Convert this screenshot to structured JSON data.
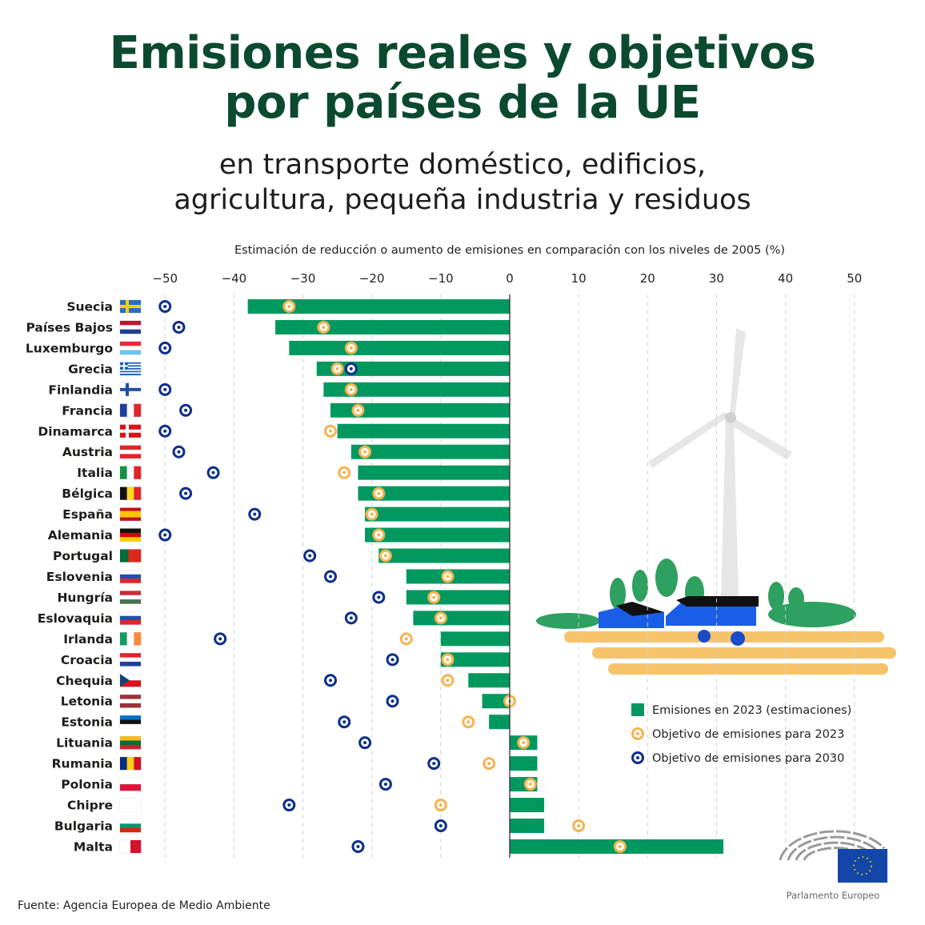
{
  "title_line1": "Emisiones reales y objetivos",
  "title_line2": "por países de la UE",
  "subtitle_line1": "en transporte doméstico, edificios,",
  "subtitle_line2": "agricultura, pequeña industria y residuos",
  "source": "Fuente: Agencia Europea de Medio Ambiente",
  "logo_text": "Parlamento Europeo",
  "colors": {
    "bar": "#00985f",
    "target2023": "#f7b34f",
    "target2030": "#0d2f8a",
    "title": "#0b4a2f"
  },
  "chart_data": {
    "type": "bar",
    "orientation": "horizontal",
    "xlabel": "Estimación de reducción o aumento de emisiones en comparación con los niveles de 2005 (%)",
    "xlim": [
      -50,
      50
    ],
    "xticks": [
      -50,
      -40,
      -30,
      -20,
      -10,
      0,
      10,
      20,
      30,
      40,
      50
    ],
    "xtick_labels": [
      "−50",
      "−40",
      "−30",
      "−20",
      "−10",
      "0",
      "10",
      "20",
      "30",
      "40",
      "50"
    ],
    "grid": true,
    "legend_placement": "right",
    "categories": [
      "Suecia",
      "Países Bajos",
      "Luxemburgo",
      "Grecia",
      "Finlandia",
      "Francia",
      "Dinamarca",
      "Austria",
      "Italia",
      "Bélgica",
      "España",
      "Alemania",
      "Portugal",
      "Eslovenia",
      "Hungría",
      "Eslovaquia",
      "Irlanda",
      "Croacia",
      "Chequia",
      "Letonia",
      "Estonia",
      "Lituania",
      "Rumania",
      "Polonia",
      "Chipre",
      "Bulgaria",
      "Malta"
    ],
    "series": [
      {
        "name": "Emisiones en 2023 (estimaciones)",
        "kind": "bar",
        "values": [
          -38,
          -34,
          -32,
          -28,
          -27,
          -26,
          -25,
          -23,
          -22,
          -22,
          -21,
          -21,
          -19,
          -15,
          -15,
          -14,
          -10,
          -10,
          -6,
          -4,
          -3,
          4,
          4,
          4,
          5,
          5,
          31
        ]
      },
      {
        "name": "Objetivo de emisiones para 2023",
        "kind": "marker",
        "values": [
          -32,
          -27,
          -23,
          -25,
          -23,
          -22,
          -26,
          -21,
          -24,
          -19,
          -20,
          -19,
          -18,
          -9,
          -11,
          -10,
          -15,
          -9,
          -9,
          0,
          -6,
          2,
          -3,
          3,
          -10,
          10,
          16
        ]
      },
      {
        "name": "Objetivo de emisiones para 2030",
        "kind": "marker",
        "values": [
          -50,
          -48,
          -50,
          -23,
          -50,
          -47,
          -50,
          -48,
          -43,
          -47,
          -37,
          -50,
          -29,
          -26,
          -19,
          -23,
          -42,
          -17,
          -26,
          -17,
          -24,
          -21,
          -11,
          -18,
          -32,
          -10,
          -22
        ]
      }
    ],
    "flags": [
      {
        "type": "cross",
        "colors": [
          "#2a6ebb",
          "#f9d000"
        ]
      },
      {
        "type": "h",
        "colors": [
          "#c8102e",
          "#ffffff",
          "#1f3f8f"
        ]
      },
      {
        "type": "h",
        "colors": [
          "#ed2939",
          "#ffffff",
          "#6cc3ef"
        ]
      },
      {
        "type": "greece",
        "colors": [
          "#1f5fb8",
          "#ffffff"
        ]
      },
      {
        "type": "cross",
        "colors": [
          "#ffffff",
          "#1f4fa0"
        ]
      },
      {
        "type": "v",
        "colors": [
          "#1f3f9f",
          "#ffffff",
          "#e1242c"
        ]
      },
      {
        "type": "cross",
        "colors": [
          "#d7141a",
          "#ffffff"
        ]
      },
      {
        "type": "h",
        "colors": [
          "#e1242c",
          "#ffffff",
          "#e1242c"
        ]
      },
      {
        "type": "v",
        "colors": [
          "#119246",
          "#ffffff",
          "#e1242c"
        ]
      },
      {
        "type": "v",
        "colors": [
          "#111111",
          "#fdda24",
          "#e1242c"
        ]
      },
      {
        "type": "h",
        "colors": [
          "#c60b1e",
          "#ffc400",
          "#ffc400",
          "#c60b1e"
        ]
      },
      {
        "type": "h",
        "colors": [
          "#111111",
          "#dd0000",
          "#ffce00"
        ]
      },
      {
        "type": "v",
        "colors": [
          "#046a38",
          "#046a38",
          "#da291c",
          "#da291c",
          "#da291c"
        ]
      },
      {
        "type": "h",
        "colors": [
          "#ffffff",
          "#1f4fb0",
          "#e1242c"
        ]
      },
      {
        "type": "h",
        "colors": [
          "#ce2939",
          "#ffffff",
          "#477050"
        ]
      },
      {
        "type": "h",
        "colors": [
          "#ffffff",
          "#1f4fb0",
          "#e1242c"
        ]
      },
      {
        "type": "v",
        "colors": [
          "#169b62",
          "#ffffff",
          "#ff883e"
        ]
      },
      {
        "type": "h",
        "colors": [
          "#e1242c",
          "#ffffff",
          "#1f3f9f"
        ]
      },
      {
        "type": "czech",
        "colors": [
          "#ffffff",
          "#d7141a",
          "#11457e"
        ]
      },
      {
        "type": "h",
        "colors": [
          "#9e3039",
          "#ffffff",
          "#9e3039"
        ]
      },
      {
        "type": "h",
        "colors": [
          "#0072ce",
          "#111111",
          "#ffffff"
        ]
      },
      {
        "type": "h",
        "colors": [
          "#fdb913",
          "#006a44",
          "#c1272d"
        ]
      },
      {
        "type": "v",
        "colors": [
          "#002b7f",
          "#fcd116",
          "#ce1126"
        ]
      },
      {
        "type": "h",
        "colors": [
          "#ffffff",
          "#dc143c"
        ]
      },
      {
        "type": "h",
        "colors": [
          "#ffffff"
        ]
      },
      {
        "type": "h",
        "colors": [
          "#ffffff",
          "#00966e",
          "#d62612"
        ]
      },
      {
        "type": "v",
        "colors": [
          "#ffffff",
          "#cf142b"
        ]
      }
    ]
  }
}
